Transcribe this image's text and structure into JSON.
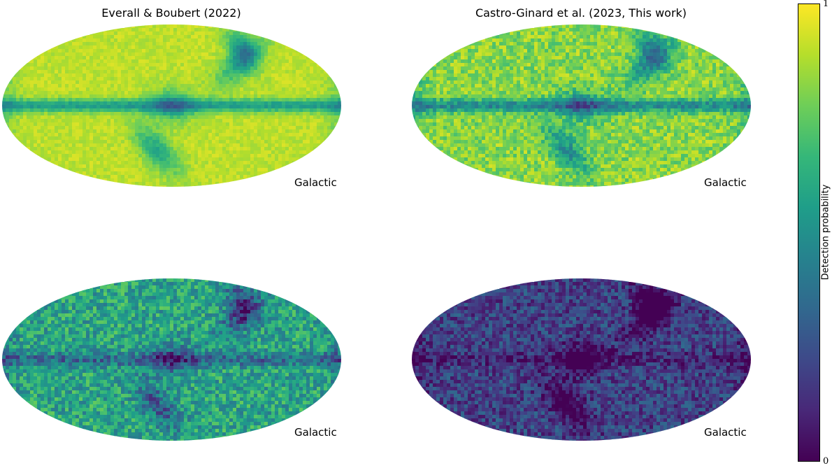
{
  "colormap": [
    "#440154",
    "#482878",
    "#3e4989",
    "#31688e",
    "#26828e",
    "#1f9e89",
    "#35b779",
    "#6ece58",
    "#b5de2b",
    "#fde725"
  ],
  "chart_data": {
    "type": "heatmap",
    "projection": "mollweide",
    "colorbar": {
      "label": "Detection probability",
      "min": 0,
      "max": 1,
      "min_label": "0",
      "max_label": "1",
      "colormap": "viridis"
    },
    "panels": [
      {
        "title": "Everall & Boubert (2022)",
        "coord_label": "Galactic",
        "base_level": 0.9,
        "plane_dip": 0.35,
        "noise": 0.05,
        "scan_stripes": true
      },
      {
        "title": "Castro-Ginard et al. (2023, This work)",
        "coord_label": "Galactic",
        "base_level": 0.82,
        "plane_dip": 0.35,
        "noise": 0.12,
        "scan_stripes": true
      },
      {
        "title": "",
        "coord_label": "Galactic",
        "base_level": 0.58,
        "plane_dip": 0.25,
        "noise": 0.18,
        "scan_stripes": true
      },
      {
        "title": "",
        "coord_label": "Galactic",
        "base_level": 0.2,
        "plane_dip": 0.1,
        "noise": 0.15,
        "scan_stripes": true
      }
    ]
  }
}
